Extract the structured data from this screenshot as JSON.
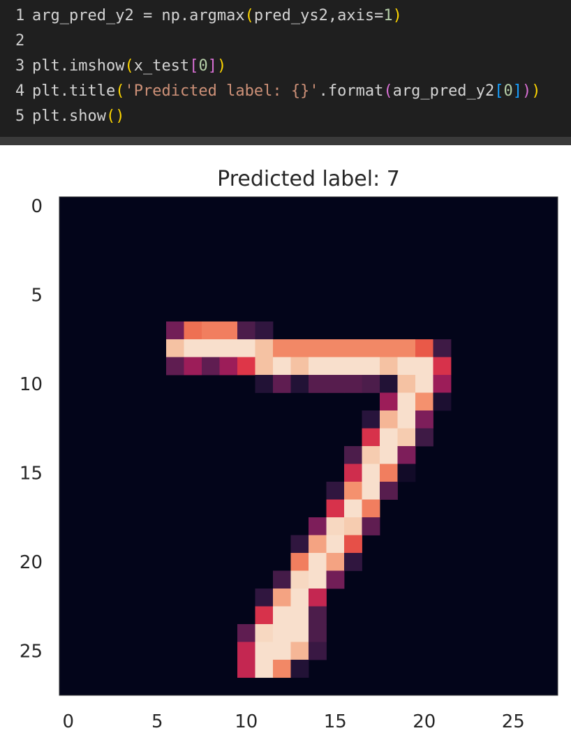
{
  "code_cell": {
    "lines": [
      {
        "n": "1",
        "tokens": [
          {
            "t": "arg_pred_y2 = np.argmax",
            "c": ""
          },
          {
            "t": "(",
            "c": "tok-yellow"
          },
          {
            "t": "pred_ys2,axis=",
            "c": ""
          },
          {
            "t": "1",
            "c": "tok-num"
          },
          {
            "t": ")",
            "c": "tok-yellow"
          }
        ]
      },
      {
        "n": "2",
        "tokens": []
      },
      {
        "n": "3",
        "tokens": [
          {
            "t": "plt.imshow",
            "c": ""
          },
          {
            "t": "(",
            "c": "tok-yellow"
          },
          {
            "t": "x_test",
            "c": ""
          },
          {
            "t": "[",
            "c": "tok-pink"
          },
          {
            "t": "0",
            "c": "tok-num"
          },
          {
            "t": "]",
            "c": "tok-pink"
          },
          {
            "t": ")",
            "c": "tok-yellow"
          }
        ]
      },
      {
        "n": "4",
        "tokens": [
          {
            "t": "plt.title",
            "c": ""
          },
          {
            "t": "(",
            "c": "tok-yellow"
          },
          {
            "t": "'Predicted label: {}'",
            "c": "tok-str"
          },
          {
            "t": ".format",
            "c": ""
          },
          {
            "t": "(",
            "c": "tok-pink"
          },
          {
            "t": "arg_pred_y2",
            "c": ""
          },
          {
            "t": "[",
            "c": "tok-blue"
          },
          {
            "t": "0",
            "c": "tok-num"
          },
          {
            "t": "]",
            "c": "tok-blue"
          },
          {
            "t": ")",
            "c": "tok-pink"
          },
          {
            "t": ")",
            "c": "tok-yellow"
          }
        ]
      },
      {
        "n": "5",
        "tokens": [
          {
            "t": "plt.show",
            "c": ""
          },
          {
            "t": "()",
            "c": "tok-yellow"
          }
        ]
      }
    ]
  },
  "chart_data": {
    "type": "heatmap",
    "title": "Predicted label: 7",
    "colormap": "rocket",
    "background_color": "#03051a",
    "xlim": [
      -0.5,
      27.5
    ],
    "ylim": [
      27.5,
      -0.5
    ],
    "x_ticks": [
      0,
      5,
      10,
      15,
      20,
      25
    ],
    "y_ticks": [
      0,
      5,
      10,
      15,
      20,
      25
    ],
    "x_tick_labels": [
      "0",
      "5",
      "10",
      "15",
      "20",
      "25"
    ],
    "y_tick_labels": [
      "0",
      "5",
      "10",
      "15",
      "20",
      "25"
    ],
    "rows": 28,
    "cols": 28,
    "nonzero_pixels": [
      {
        "row": 7,
        "cells": [
          [
            6,
            0.35
          ],
          [
            7,
            0.75
          ],
          [
            8,
            0.78
          ],
          [
            9,
            0.78
          ],
          [
            10,
            0.25
          ],
          [
            11,
            0.15
          ]
        ]
      },
      {
        "row": 8,
        "cells": [
          [
            6,
            0.9
          ],
          [
            7,
            0.97
          ],
          [
            8,
            0.97
          ],
          [
            9,
            0.97
          ],
          [
            10,
            0.97
          ],
          [
            11,
            0.9
          ],
          [
            12,
            0.8
          ],
          [
            13,
            0.8
          ],
          [
            14,
            0.8
          ],
          [
            15,
            0.8
          ],
          [
            16,
            0.8
          ],
          [
            17,
            0.8
          ],
          [
            18,
            0.8
          ],
          [
            19,
            0.8
          ],
          [
            20,
            0.7
          ],
          [
            21,
            0.2
          ]
        ]
      },
      {
        "row": 9,
        "cells": [
          [
            6,
            0.3
          ],
          [
            7,
            0.45
          ],
          [
            8,
            0.3
          ],
          [
            9,
            0.45
          ],
          [
            10,
            0.62
          ],
          [
            11,
            0.9
          ],
          [
            12,
            0.97
          ],
          [
            13,
            0.9
          ],
          [
            14,
            0.97
          ],
          [
            15,
            0.97
          ],
          [
            16,
            0.97
          ],
          [
            17,
            0.97
          ],
          [
            18,
            0.9
          ],
          [
            19,
            0.97
          ],
          [
            20,
            0.97
          ],
          [
            21,
            0.6
          ]
        ]
      },
      {
        "row": 10,
        "cells": [
          [
            11,
            0.1
          ],
          [
            12,
            0.3
          ],
          [
            13,
            0.1
          ],
          [
            14,
            0.28
          ],
          [
            15,
            0.28
          ],
          [
            16,
            0.28
          ],
          [
            17,
            0.25
          ],
          [
            18,
            0.1
          ],
          [
            19,
            0.9
          ],
          [
            20,
            0.97
          ],
          [
            21,
            0.45
          ]
        ]
      },
      {
        "row": 11,
        "cells": [
          [
            18,
            0.45
          ],
          [
            19,
            0.97
          ],
          [
            20,
            0.82
          ],
          [
            21,
            0.08
          ]
        ]
      },
      {
        "row": 12,
        "cells": [
          [
            17,
            0.12
          ],
          [
            18,
            0.88
          ],
          [
            19,
            0.97
          ],
          [
            20,
            0.38
          ]
        ]
      },
      {
        "row": 13,
        "cells": [
          [
            17,
            0.6
          ],
          [
            18,
            0.97
          ],
          [
            19,
            0.92
          ],
          [
            20,
            0.2
          ]
        ]
      },
      {
        "row": 14,
        "cells": [
          [
            16,
            0.25
          ],
          [
            17,
            0.92
          ],
          [
            18,
            0.97
          ],
          [
            19,
            0.38
          ]
        ]
      },
      {
        "row": 15,
        "cells": [
          [
            16,
            0.58
          ],
          [
            17,
            0.97
          ],
          [
            18,
            0.78
          ],
          [
            19,
            0.05
          ]
        ]
      },
      {
        "row": 16,
        "cells": [
          [
            15,
            0.15
          ],
          [
            16,
            0.82
          ],
          [
            17,
            0.97
          ],
          [
            18,
            0.28
          ]
        ]
      },
      {
        "row": 17,
        "cells": [
          [
            15,
            0.6
          ],
          [
            16,
            0.97
          ],
          [
            17,
            0.78
          ]
        ]
      },
      {
        "row": 18,
        "cells": [
          [
            14,
            0.38
          ],
          [
            15,
            0.95
          ],
          [
            16,
            0.92
          ],
          [
            17,
            0.3
          ]
        ]
      },
      {
        "row": 19,
        "cells": [
          [
            13,
            0.15
          ],
          [
            14,
            0.85
          ],
          [
            15,
            0.97
          ],
          [
            16,
            0.68
          ]
        ]
      },
      {
        "row": 20,
        "cells": [
          [
            13,
            0.78
          ],
          [
            14,
            0.97
          ],
          [
            15,
            0.85
          ],
          [
            16,
            0.15
          ]
        ]
      },
      {
        "row": 21,
        "cells": [
          [
            12,
            0.22
          ],
          [
            13,
            0.95
          ],
          [
            14,
            0.97
          ],
          [
            15,
            0.35
          ]
        ]
      },
      {
        "row": 22,
        "cells": [
          [
            11,
            0.15
          ],
          [
            12,
            0.85
          ],
          [
            13,
            0.97
          ],
          [
            14,
            0.55
          ]
        ]
      },
      {
        "row": 23,
        "cells": [
          [
            11,
            0.6
          ],
          [
            12,
            0.97
          ],
          [
            13,
            0.97
          ],
          [
            14,
            0.25
          ]
        ]
      },
      {
        "row": 24,
        "cells": [
          [
            10,
            0.3
          ],
          [
            11,
            0.95
          ],
          [
            12,
            0.97
          ],
          [
            13,
            0.97
          ],
          [
            14,
            0.25
          ]
        ]
      },
      {
        "row": 25,
        "cells": [
          [
            10,
            0.55
          ],
          [
            11,
            0.97
          ],
          [
            12,
            0.97
          ],
          [
            13,
            0.88
          ],
          [
            14,
            0.18
          ]
        ]
      },
      {
        "row": 26,
        "cells": [
          [
            10,
            0.55
          ],
          [
            11,
            0.97
          ],
          [
            12,
            0.8
          ],
          [
            13,
            0.1
          ]
        ]
      }
    ]
  }
}
